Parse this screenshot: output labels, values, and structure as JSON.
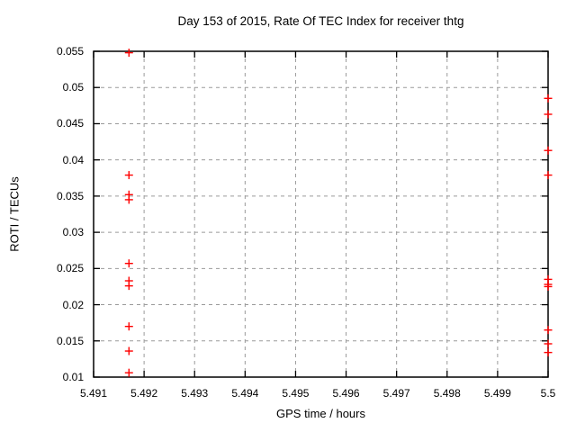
{
  "chart_data": {
    "type": "scatter",
    "title": "Day 153 of 2015, Rate Of TEC Index for receiver thtg",
    "x_axis": {
      "label": "GPS time / hours",
      "lim": [
        5.491,
        5.5
      ],
      "ticks": [
        {
          "v": 5.491,
          "t": "5.491"
        },
        {
          "v": 5.492,
          "t": "5.492"
        },
        {
          "v": 5.493,
          "t": "5.493"
        },
        {
          "v": 5.494,
          "t": "5.494"
        },
        {
          "v": 5.495,
          "t": "5.495"
        },
        {
          "v": 5.496,
          "t": "5.496"
        },
        {
          "v": 5.497,
          "t": "5.497"
        },
        {
          "v": 5.498,
          "t": "5.498"
        },
        {
          "v": 5.499,
          "t": "5.499"
        },
        {
          "v": 5.5,
          "t": "5.5"
        }
      ]
    },
    "y_axis": {
      "label": "ROTI / TECUs",
      "lim": [
        0.01,
        0.055
      ],
      "ticks": [
        {
          "v": 0.01,
          "t": "0.01"
        },
        {
          "v": 0.015,
          "t": "0.015"
        },
        {
          "v": 0.02,
          "t": "0.02"
        },
        {
          "v": 0.025,
          "t": "0.025"
        },
        {
          "v": 0.03,
          "t": "0.03"
        },
        {
          "v": 0.035,
          "t": "0.035"
        },
        {
          "v": 0.04,
          "t": "0.04"
        },
        {
          "v": 0.045,
          "t": "0.045"
        },
        {
          "v": 0.05,
          "t": "0.05"
        },
        {
          "v": 0.055,
          "t": "0.055"
        }
      ]
    },
    "grid": true,
    "legend": "none",
    "marker": {
      "shape": "plus",
      "color": "#ff0000"
    },
    "colors": {
      "background": "#ffffff",
      "axis": "#000000",
      "grid": "#9a9a9a",
      "text": "#000000",
      "marker": "#ff0000"
    },
    "series": [
      {
        "name": "roti",
        "points": [
          [
            5.4917,
            0.0548
          ],
          [
            5.4917,
            0.0379
          ],
          [
            5.4917,
            0.0352
          ],
          [
            5.4917,
            0.0345
          ],
          [
            5.4917,
            0.0257
          ],
          [
            5.4917,
            0.0233
          ],
          [
            5.4917,
            0.0226
          ],
          [
            5.4917,
            0.017
          ],
          [
            5.4917,
            0.0136
          ],
          [
            5.4917,
            0.0106
          ],
          [
            5.5,
            0.0485
          ],
          [
            5.5,
            0.0463
          ],
          [
            5.5,
            0.0413
          ],
          [
            5.5,
            0.0379
          ],
          [
            5.5,
            0.0235
          ],
          [
            5.5,
            0.0228
          ],
          [
            5.5,
            0.0225
          ],
          [
            5.5,
            0.0165
          ],
          [
            5.5,
            0.0146
          ],
          [
            5.5,
            0.0134
          ]
        ]
      }
    ]
  }
}
